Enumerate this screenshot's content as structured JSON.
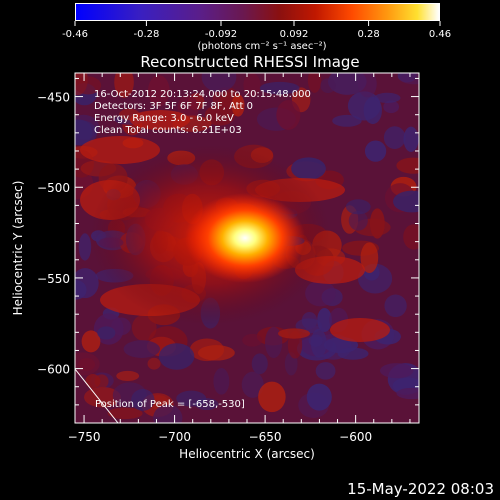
{
  "colorbar": {
    "ticks": [
      "-0.46",
      "-0.28",
      "-0.092",
      "0.092",
      "0.28",
      "0.46"
    ],
    "unit": "(photons cm⁻² s⁻¹ asec⁻²)"
  },
  "chart_data": {
    "type": "heatmap",
    "title": "Reconstructed RHESSI Image",
    "xlabel": "Heliocentric X (arcsec)",
    "ylabel": "Heliocentric Y (arcsec)",
    "xlim": [
      -755,
      -565
    ],
    "ylim": [
      -630,
      -437
    ],
    "xticks": [
      -750,
      -700,
      -650,
      -600
    ],
    "yticks": [
      -450,
      -500,
      -550,
      -600
    ],
    "xtick_labels": [
      "−750",
      "−700",
      "−650",
      "−600"
    ],
    "ytick_labels": [
      "−450",
      "−500",
      "−550",
      "−600"
    ],
    "value_range": [
      -0.46,
      0.46
    ],
    "peak": {
      "x": -658,
      "y": -530,
      "value": 0.46
    },
    "annotations": [
      "16-Oct-2012 20:13:24.000 to 20:15:48.000",
      "Detectors: 3F 5F 6F 7F 8F, Att 0",
      "Energy Range: 3.0 - 6.0 keV",
      "Clean     Total counts: 6.21E+03"
    ],
    "peak_label": "Position of Peak = [-658,-530]"
  },
  "footer": {
    "timestamp": "15-May-2022 08:03"
  }
}
